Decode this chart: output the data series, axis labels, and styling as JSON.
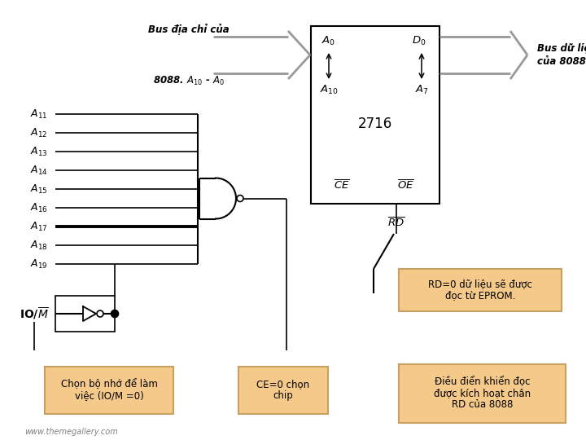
{
  "bg_color": "#ffffff",
  "lc": "#000000",
  "gc": "#999999",
  "box_fill": "#f4c98a",
  "box_edge": "#c8a060",
  "watermark": "www.themegallery.com",
  "chip_label": "2716",
  "bus_addr_line1": "Bus địa chỉ của",
  "bus_addr_line2": "8088. A₁₀ - A₀",
  "bus_data_line1": "Bus dữ liệu",
  "bus_data_line2": "của 8088",
  "box1_l1": "Chọn bộ nhớ để làm",
  "box1_l2": "việc (IO/M =0)",
  "box2_l1": "CE=0 chọn",
  "box2_l2": "chip",
  "box3_l1": "RD=0 dữ liệu sẽ được",
  "box3_l2": "đọc từ EPROM.",
  "box4_l1": "Điều điển khiển đọc",
  "box4_l2": "được kích hoạt chân",
  "box4_l3": "RD của 8088"
}
